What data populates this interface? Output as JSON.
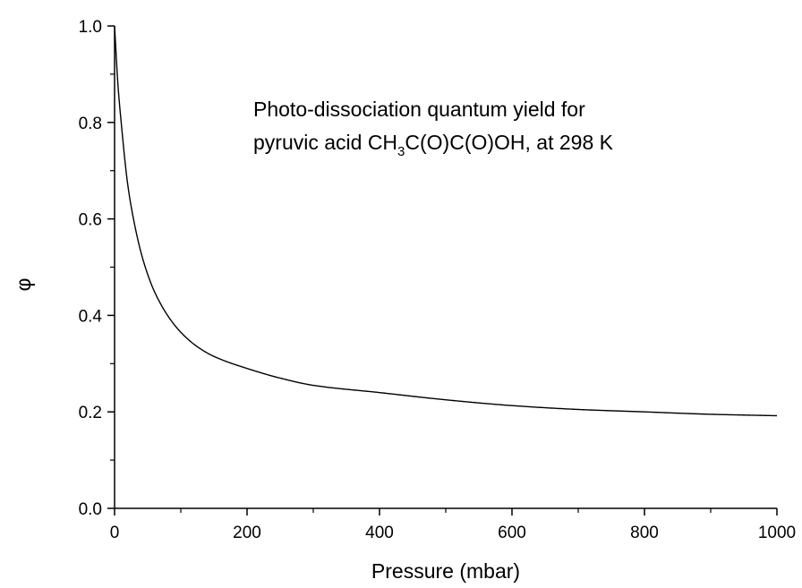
{
  "chart_data": {
    "type": "line",
    "title": "",
    "xlabel": "Pressure (mbar)",
    "ylabel": "φ",
    "xlim": [
      0,
      1000
    ],
    "ylim": [
      0.0,
      1.0
    ],
    "x_ticks": [
      "0",
      "200",
      "400",
      "600",
      "800",
      "1000"
    ],
    "y_ticks": [
      "0.0",
      "0.2",
      "0.4",
      "0.6",
      "0.8",
      "1.0"
    ],
    "grid": false,
    "annotation": {
      "line1": "Photo-dissociation quantum yield for",
      "line2_prefix": "pyruvic acid CH",
      "line2_sub": "3",
      "line2_suffix": "C(O)C(O)OH, at 298 K"
    },
    "series": [
      {
        "color": "#000000",
        "x": [
          0,
          2,
          5,
          10,
          20,
          30,
          40,
          50,
          60,
          80,
          100,
          125,
          150,
          200,
          250,
          300,
          400,
          500,
          600,
          700,
          800,
          900,
          1000
        ],
        "y": [
          1.0,
          0.95,
          0.88,
          0.8,
          0.67,
          0.59,
          0.53,
          0.485,
          0.45,
          0.4,
          0.365,
          0.335,
          0.315,
          0.29,
          0.27,
          0.255,
          0.24,
          0.225,
          0.213,
          0.205,
          0.2,
          0.195,
          0.192
        ]
      }
    ]
  }
}
